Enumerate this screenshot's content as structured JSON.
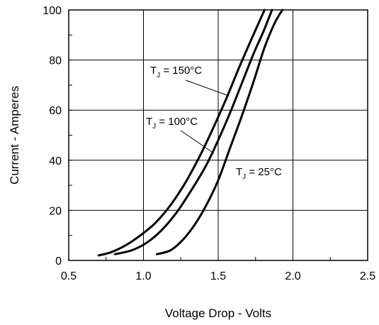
{
  "chart_data": {
    "type": "line",
    "title": "",
    "xlabel": "Voltage Drop - Volts",
    "ylabel": "Current - Amperes",
    "xlim": [
      0.5,
      2.5
    ],
    "ylim": [
      0,
      100
    ],
    "x_ticks": [
      "0.5",
      "1.0",
      "1.5",
      "2.0",
      "2.5"
    ],
    "y_ticks": [
      "0",
      "20",
      "40",
      "60",
      "80",
      "100"
    ],
    "grid": true,
    "series": [
      {
        "points": [
          [
            0.7,
            2
          ],
          [
            0.78,
            3.2
          ],
          [
            0.88,
            6
          ],
          [
            0.98,
            10
          ],
          [
            1.08,
            15
          ],
          [
            1.18,
            22
          ],
          [
            1.28,
            31
          ],
          [
            1.38,
            42
          ],
          [
            1.46,
            52
          ],
          [
            1.55,
            64
          ],
          [
            1.64,
            77
          ],
          [
            1.72,
            88
          ],
          [
            1.81,
            100
          ]
        ]
      },
      {
        "points": [
          [
            0.81,
            2.5
          ],
          [
            0.92,
            4
          ],
          [
            1.02,
            7
          ],
          [
            1.12,
            12
          ],
          [
            1.22,
            19
          ],
          [
            1.32,
            28
          ],
          [
            1.42,
            38
          ],
          [
            1.5,
            48
          ],
          [
            1.58,
            59
          ],
          [
            1.66,
            71
          ],
          [
            1.74,
            83
          ],
          [
            1.8,
            91
          ],
          [
            1.86,
            100
          ]
        ]
      },
      {
        "points": [
          [
            1.09,
            2.5
          ],
          [
            1.18,
            4
          ],
          [
            1.26,
            8
          ],
          [
            1.34,
            14
          ],
          [
            1.42,
            22
          ],
          [
            1.5,
            32
          ],
          [
            1.58,
            45
          ],
          [
            1.66,
            58
          ],
          [
            1.74,
            72
          ],
          [
            1.81,
            85
          ],
          [
            1.88,
            95
          ],
          [
            1.93,
            100
          ]
        ]
      }
    ],
    "annotations": [
      {
        "main": "T",
        "sub": "J",
        "rest": " = 150°C"
      },
      {
        "main": "T",
        "sub": "J",
        "rest": " = 100°C"
      },
      {
        "main": "T",
        "sub": "J",
        "rest": " = 25°C"
      }
    ]
  }
}
